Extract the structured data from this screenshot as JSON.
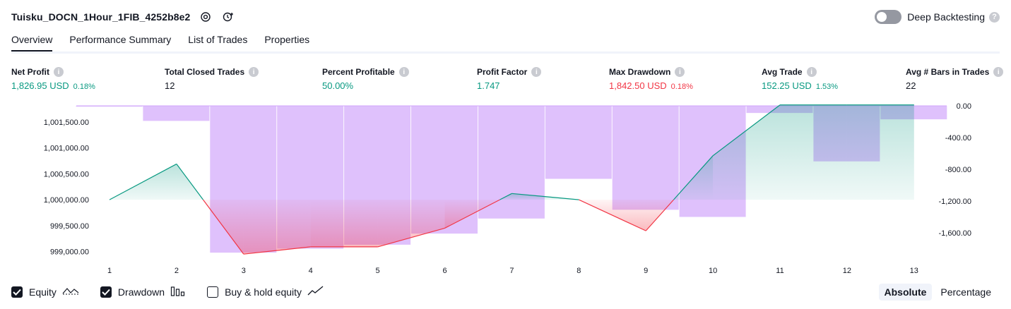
{
  "header": {
    "strategy_name": "Tuisku_DOCN_1Hour_1FIB_4252b8e2",
    "deep_backtesting_label": "Deep Backtesting",
    "deep_backtesting_enabled": false,
    "icons": [
      "settings-icon",
      "add-alert-icon",
      "help-icon"
    ]
  },
  "tabs": [
    {
      "label": "Overview",
      "active": true
    },
    {
      "label": "Performance Summary",
      "active": false
    },
    {
      "label": "List of Trades",
      "active": false
    },
    {
      "label": "Properties",
      "active": false
    }
  ],
  "metrics": [
    {
      "label": "Net Profit",
      "value": "1,826.95 USD",
      "pct": "0.18%",
      "color": "green"
    },
    {
      "label": "Total Closed Trades",
      "value": "12",
      "pct": "",
      "color": "dark"
    },
    {
      "label": "Percent Profitable",
      "value": "50.00%",
      "pct": "",
      "color": "green"
    },
    {
      "label": "Profit Factor",
      "value": "1.747",
      "pct": "",
      "color": "green"
    },
    {
      "label": "Max Drawdown",
      "value": "1,842.50 USD",
      "pct": "0.18%",
      "color": "red"
    },
    {
      "label": "Avg Trade",
      "value": "152.25 USD",
      "pct": "1.53%",
      "color": "green"
    },
    {
      "label": "Avg # Bars in Trades",
      "value": "22",
      "pct": "",
      "color": "dark"
    }
  ],
  "chart_data": {
    "type": "line+bar",
    "x": [
      1,
      2,
      3,
      4,
      5,
      6,
      7,
      8,
      9,
      10,
      11,
      12,
      13
    ],
    "left_axis": {
      "ticks": [
        "1,001,500.00",
        "1,001,000.00",
        "1,000,500.00",
        "1,000,000.00",
        "999,500.00",
        "999,000.00"
      ],
      "tick_values": [
        1001500,
        1001000,
        1000500,
        1000000,
        999500,
        999000
      ]
    },
    "right_axis": {
      "ticks": [
        "0.00",
        "-400.00",
        "-800.00",
        "-1,200.00",
        "-1,600.00"
      ],
      "tick_values": [
        0,
        -400,
        -800,
        -1200,
        -1600
      ]
    },
    "equity": {
      "baseline": 1000000,
      "values": [
        1000000,
        1000690,
        998950,
        999090,
        999090,
        999450,
        1000120,
        1000000,
        999400,
        1000850,
        1001830,
        1001830,
        1001830
      ],
      "color_above": "#089981",
      "color_below": "#f23645"
    },
    "drawdown": {
      "values": [
        -10,
        -190,
        -1850,
        -1800,
        -1750,
        -1610,
        -1420,
        -920,
        -1310,
        -1400,
        -90,
        -700,
        -170
      ],
      "color": "#d1a6fb"
    },
    "legend": [
      {
        "label": "Equity",
        "checked": true,
        "icon": "equity-line-icon"
      },
      {
        "label": "Drawdown",
        "checked": true,
        "icon": "drawdown-bars-icon"
      },
      {
        "label": "Buy & hold equity",
        "checked": false,
        "icon": "buy-hold-line-icon"
      }
    ]
  },
  "view_mode": {
    "options": [
      "Absolute",
      "Percentage"
    ],
    "selected": "Absolute"
  }
}
